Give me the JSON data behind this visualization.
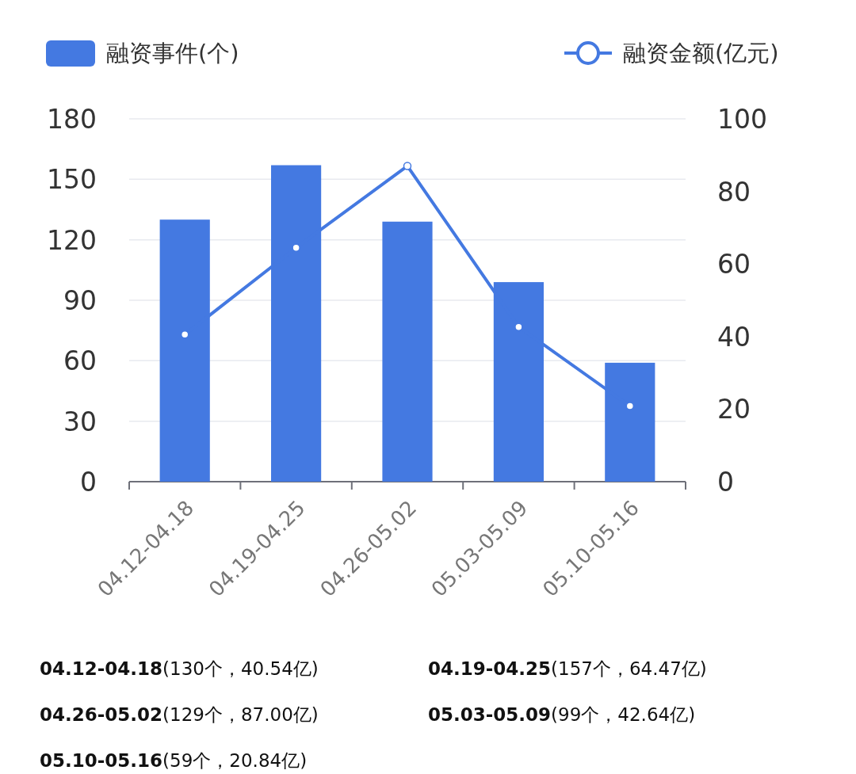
{
  "chart_data": {
    "type": "bar",
    "categories": [
      "04.12-04.18",
      "04.19-04.25",
      "04.26-05.02",
      "05.03-05.09",
      "05.10-05.16"
    ],
    "series": [
      {
        "name": "融资事件(个)",
        "color": "#4479e1",
        "values": [
          130,
          157,
          129,
          99,
          59
        ]
      },
      {
        "name": "融资金额(亿元)",
        "type": "line",
        "axis": "y2",
        "color": "#4479e1",
        "values": [
          40.54,
          64.47,
          87.0,
          42.64,
          20.84
        ]
      }
    ],
    "ylim": [
      0,
      180
    ],
    "yticks": [
      0,
      30,
      60,
      90,
      120,
      150,
      180
    ],
    "y2lim": [
      0,
      100
    ],
    "y2ticks": [
      0,
      20,
      40,
      60,
      80,
      100
    ],
    "grid": "y",
    "legend": "top",
    "marker": "circle",
    "annotations": [
      "04.12-04.18(130个，40.54亿)",
      "04.19-04.25(157个，64.47亿)",
      "04.26-05.02(129个，87.00亿)",
      "05.03-05.09(99个，42.64亿)",
      "05.10-05.16(59个，20.84亿)"
    ]
  }
}
